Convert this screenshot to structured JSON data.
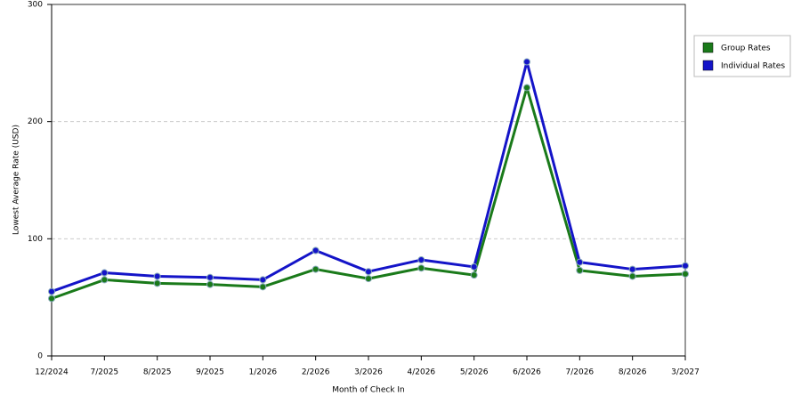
{
  "chart_data": {
    "type": "line",
    "x_label": "Month of Check In",
    "y_label": "Lowest Average Rate (USD)",
    "categories": [
      "12/2024",
      "7/2025",
      "8/2025",
      "9/2025",
      "1/2026",
      "2/2026",
      "3/2026",
      "4/2026",
      "5/2026",
      "6/2026",
      "7/2026",
      "8/2026",
      "3/2027"
    ],
    "series": [
      {
        "name": "Group Rates",
        "color": "#1a7a1a",
        "values": [
          49,
          65,
          62,
          61,
          59,
          74,
          66,
          75,
          69,
          229,
          73,
          68,
          70
        ]
      },
      {
        "name": "Individual Rates",
        "color": "#1414c8",
        "values": [
          55,
          71,
          68,
          67,
          65,
          90,
          72,
          82,
          76,
          251,
          80,
          74,
          77
        ]
      }
    ],
    "ylim": [
      0,
      300
    ],
    "yticks": [
      0,
      100,
      200,
      300
    ],
    "grid": true,
    "legend": "right"
  }
}
